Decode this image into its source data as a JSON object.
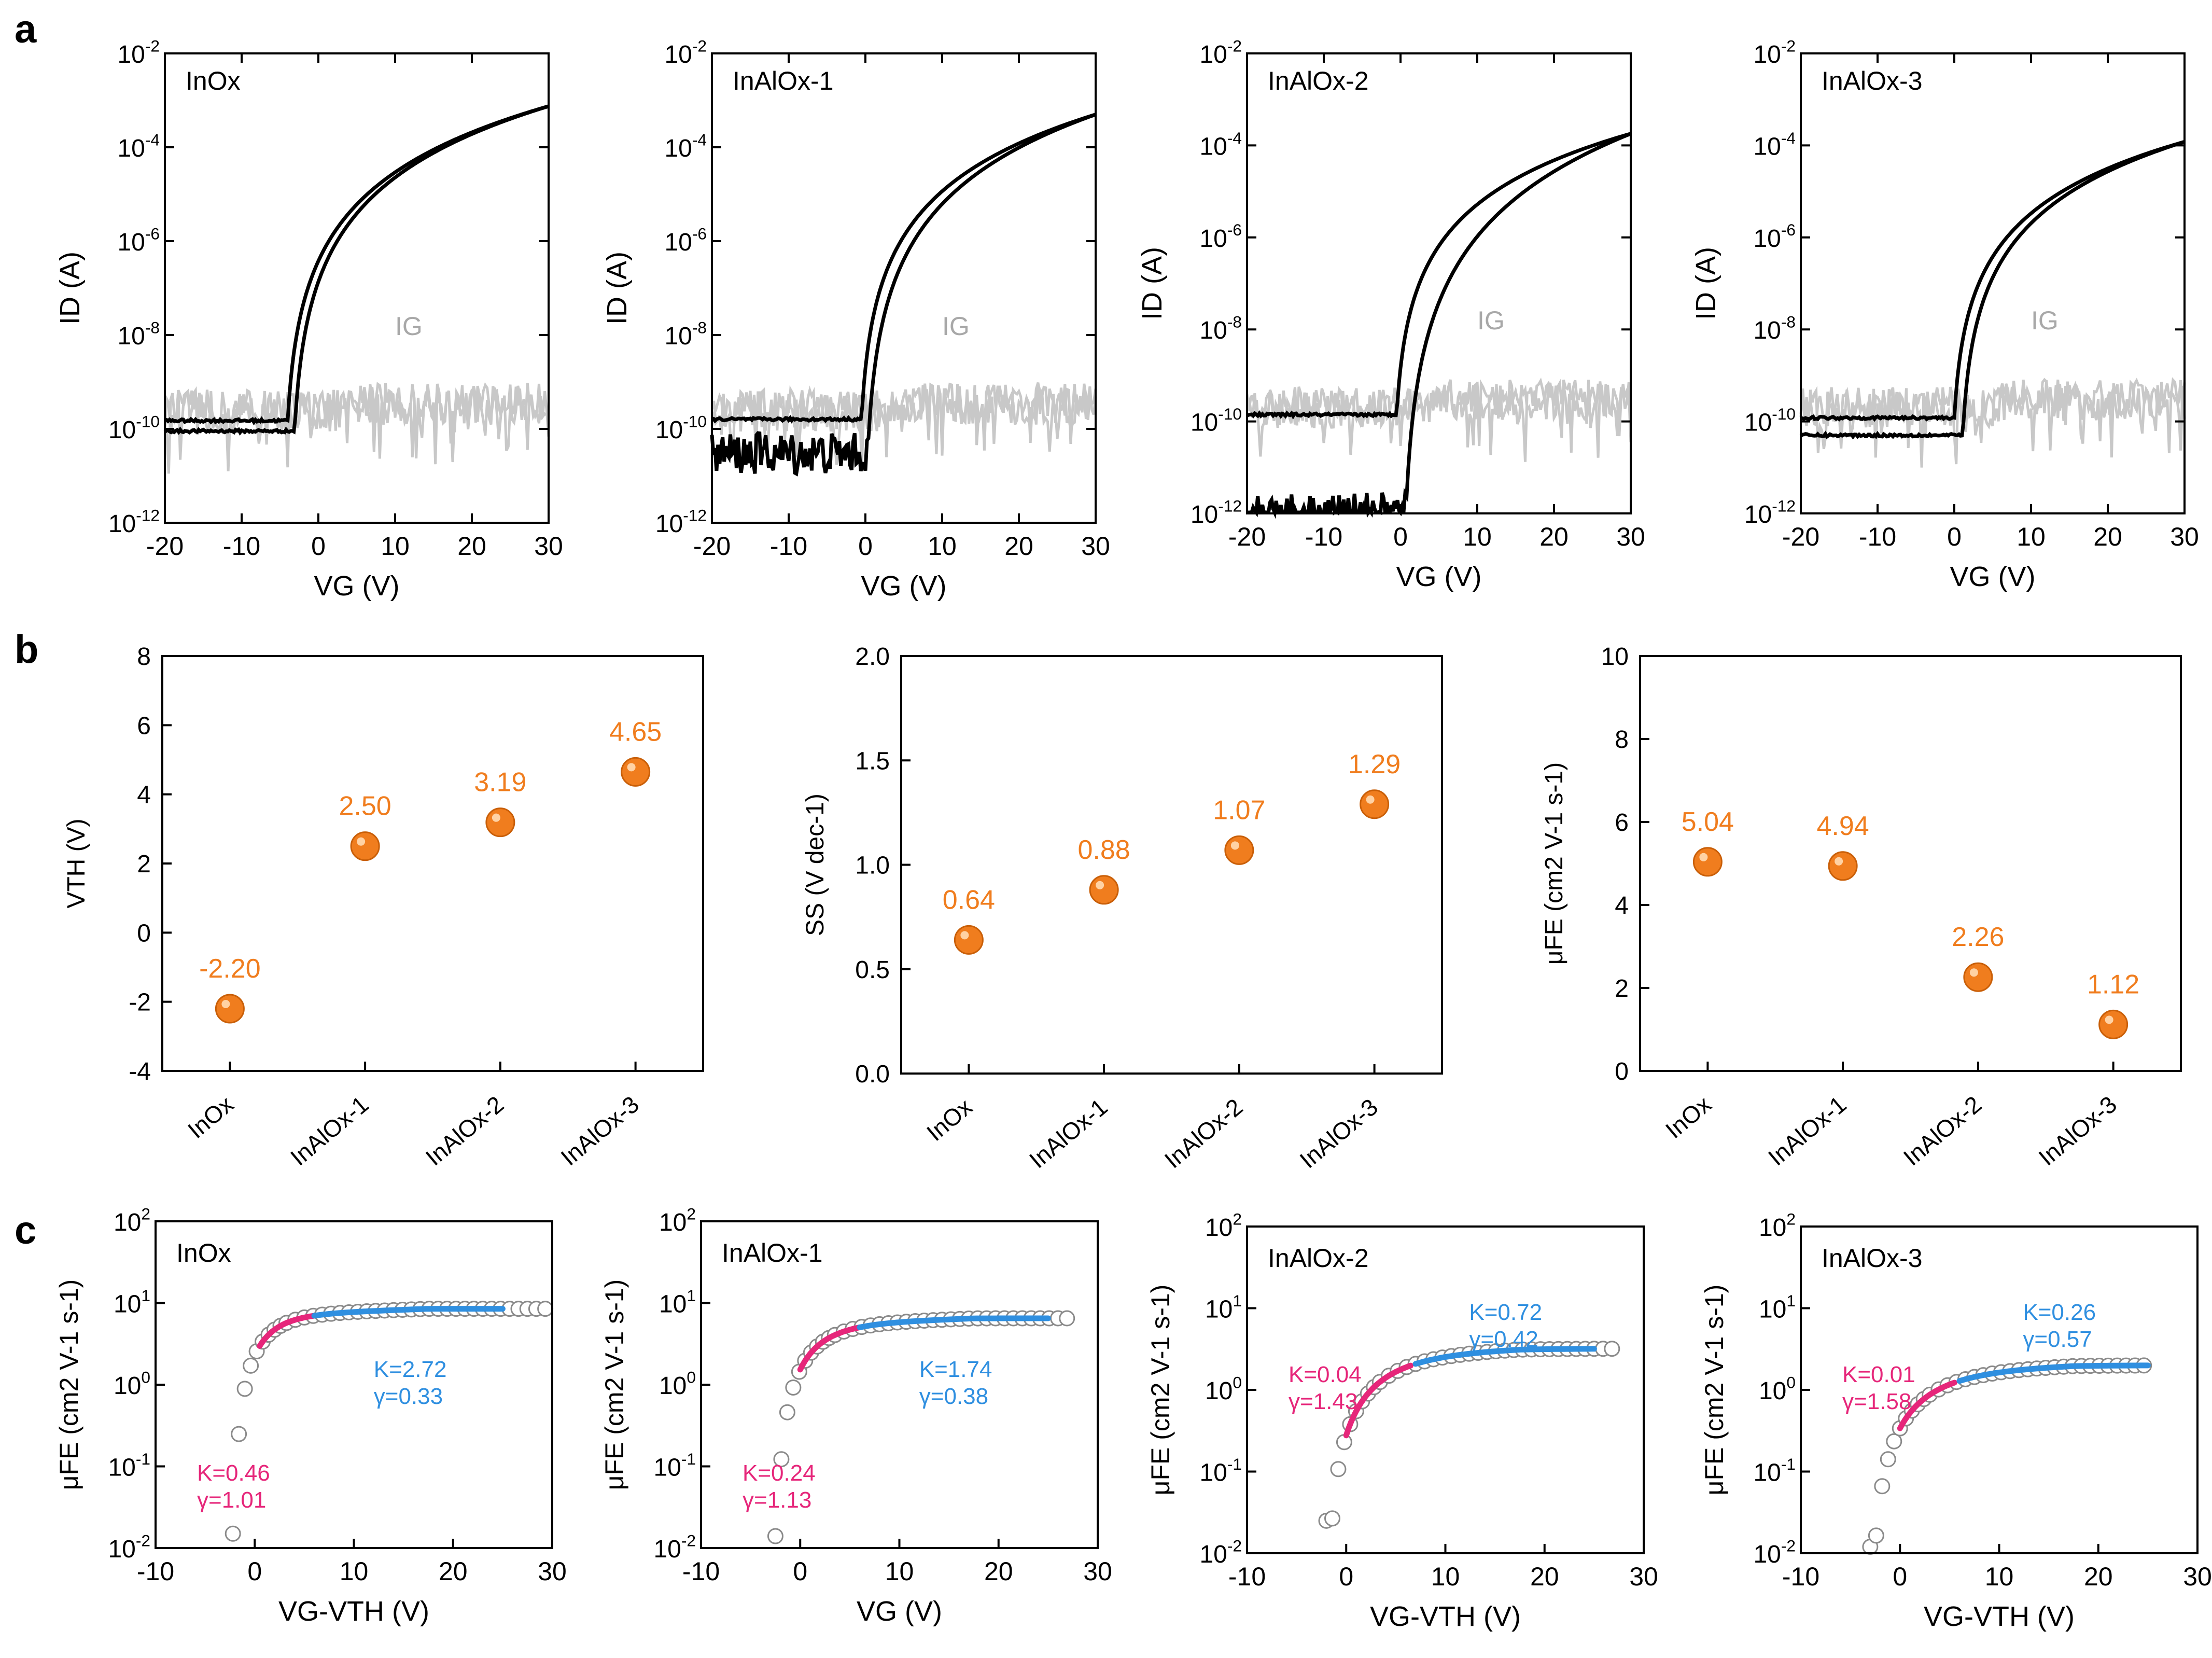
{
  "panel_labels": [
    "a",
    "b",
    "c"
  ],
  "colors": {
    "ink": "#000000",
    "ig": "#c8c8c8",
    "accent": "#f07d1e",
    "pink": "#e6267a",
    "blue": "#2f8fe0",
    "marker": "#8a8a8a"
  },
  "chart_data": [
    {
      "type": "line",
      "panel": "a",
      "title": "InOx",
      "xlabel": "VG (V)",
      "ylabel": "ID (A)",
      "ig_label": "IG",
      "xlim": [
        -20,
        30
      ],
      "xticks": [
        -20,
        -10,
        0,
        10,
        20,
        30
      ],
      "ylim_exp": [
        -12,
        -2
      ],
      "yticks": [
        {
          "b": "10",
          "e": "-12"
        },
        {
          "b": "10",
          "e": "-10"
        },
        {
          "b": "10",
          "e": "-8"
        },
        {
          "b": "10",
          "e": "-6"
        },
        {
          "b": "10",
          "e": "-4"
        },
        {
          "b": "10",
          "e": "-2"
        }
      ],
      "series": [
        {
          "name": "ID",
          "vth": -4,
          "off_fwd": 1.5e-10,
          "off_rev": 9e-11,
          "on_at_30": 0.00075,
          "shift": 0.9
        },
        {
          "name": "IG",
          "level": 3e-10
        }
      ]
    },
    {
      "type": "line",
      "panel": "a",
      "title": "InAlOx-1",
      "xlabel": "VG (V)",
      "ylabel": "ID (A)",
      "ig_label": "IG",
      "xlim": [
        -20,
        30
      ],
      "xticks": [
        -20,
        -10,
        0,
        10,
        20,
        30
      ],
      "ylim_exp": [
        -12,
        -2
      ],
      "yticks": [
        {
          "b": "10",
          "e": "-12"
        },
        {
          "b": "10",
          "e": "-10"
        },
        {
          "b": "10",
          "e": "-8"
        },
        {
          "b": "10",
          "e": "-6"
        },
        {
          "b": "10",
          "e": "-4"
        },
        {
          "b": "10",
          "e": "-2"
        }
      ],
      "series": [
        {
          "name": "ID",
          "vth": -0.5,
          "off_fwd": 1.6e-10,
          "off_rev": 3e-11,
          "on_at_30": 0.0005,
          "shift": 0.8
        },
        {
          "name": "IG",
          "level": 3e-10
        }
      ]
    },
    {
      "type": "line",
      "panel": "a",
      "title": "InAlOx-2",
      "xlabel": "VG (V)",
      "ylabel": "ID (A)",
      "ig_label": "IG",
      "xlim": [
        -20,
        30
      ],
      "xticks": [
        -20,
        -10,
        0,
        10,
        20,
        30
      ],
      "ylim_exp": [
        -12,
        -2
      ],
      "yticks": [
        {
          "b": "10",
          "e": "-12"
        },
        {
          "b": "10",
          "e": "-10"
        },
        {
          "b": "10",
          "e": "-8"
        },
        {
          "b": "10",
          "e": "-6"
        },
        {
          "b": "10",
          "e": "-4"
        },
        {
          "b": "10",
          "e": "-2"
        }
      ],
      "series": [
        {
          "name": "ID",
          "vth": -0.5,
          "off_fwd": 1.4e-10,
          "off_rev": 1e-12,
          "on_at_30": 0.00018,
          "shift": 1.2
        },
        {
          "name": "IG",
          "level": 2.5e-10
        }
      ]
    },
    {
      "type": "line",
      "panel": "a",
      "title": "InAlOx-3",
      "xlabel": "VG (V)",
      "ylabel": "ID (A)",
      "ig_label": "IG",
      "xlim": [
        -20,
        30
      ],
      "xticks": [
        -20,
        -10,
        0,
        10,
        20,
        30
      ],
      "ylim_exp": [
        -12,
        -2
      ],
      "yticks": [
        {
          "b": "10",
          "e": "-12"
        },
        {
          "b": "10",
          "e": "-10"
        },
        {
          "b": "10",
          "e": "-8"
        },
        {
          "b": "10",
          "e": "-6"
        },
        {
          "b": "10",
          "e": "-4"
        },
        {
          "b": "10",
          "e": "-2"
        }
      ],
      "series": [
        {
          "name": "ID",
          "vth": 0,
          "off_fwd": 1.2e-10,
          "off_rev": 5e-11,
          "on_at_30": 0.00012,
          "shift": 1.1
        },
        {
          "name": "IG",
          "level": 2.5e-10
        }
      ]
    },
    {
      "type": "scatter",
      "panel": "b",
      "ylabel": "VTH (V)",
      "ylim": [
        -4,
        8
      ],
      "yticks": [
        -4,
        -2,
        0,
        2,
        4,
        6,
        8
      ],
      "ytick_labels": [
        "-4",
        "-2",
        "0",
        "2",
        "4",
        "6",
        "8"
      ],
      "categories": [
        "InOx",
        "InAlOx-1",
        "InAlOx-2",
        "InAlOx-3"
      ],
      "values": [
        -2.2,
        2.5,
        3.19,
        4.65
      ],
      "value_labels": [
        "-2.20",
        "2.50",
        "3.19",
        "4.65"
      ]
    },
    {
      "type": "scatter",
      "panel": "b",
      "ylabel": "SS (V dec-1)",
      "ylim": [
        0,
        2
      ],
      "yticks": [
        0,
        0.5,
        1,
        1.5,
        2
      ],
      "ytick_labels": [
        "0.0",
        "0.5",
        "1.0",
        "1.5",
        "2.0"
      ],
      "categories": [
        "InOx",
        "InAlOx-1",
        "InAlOx-2",
        "InAlOx-3"
      ],
      "values": [
        0.64,
        0.88,
        1.07,
        1.29
      ],
      "value_labels": [
        "0.64",
        "0.88",
        "1.07",
        "1.29"
      ]
    },
    {
      "type": "scatter",
      "panel": "b",
      "ylabel": "μFE (cm2 V-1 s-1)",
      "ylim": [
        0,
        10
      ],
      "yticks": [
        0,
        2,
        4,
        6,
        8,
        10
      ],
      "ytick_labels": [
        "0",
        "2",
        "4",
        "6",
        "8",
        "10"
      ],
      "categories": [
        "InOx",
        "InAlOx-1",
        "InAlOx-2",
        "InAlOx-3"
      ],
      "values": [
        5.04,
        4.94,
        2.26,
        1.12
      ],
      "value_labels": [
        "5.04",
        "4.94",
        "2.26",
        "1.12"
      ]
    },
    {
      "type": "scatter",
      "panel": "c",
      "title": "InOx",
      "xlabel": "VG-VTH (V)",
      "ylabel": "μFE (cm2 V-1 s-1)",
      "xlim": [
        -10,
        30
      ],
      "xticks": [
        -10,
        0,
        10,
        20,
        30
      ],
      "ylim_exp": [
        -2,
        2
      ],
      "yticks": [
        {
          "b": "10",
          "e": "-2"
        },
        {
          "b": "10",
          "e": "-1"
        },
        {
          "b": "10",
          "e": "0"
        },
        {
          "b": "10",
          "e": "1"
        },
        {
          "b": "10",
          "e": "2"
        }
      ],
      "fit_pink": {
        "K": "K=0.46",
        "gamma": "γ=1.01",
        "x_range": [
          0.5,
          6
        ]
      },
      "fit_blue": {
        "K": "K=2.72",
        "gamma": "γ=0.33",
        "x_range": [
          6,
          25
        ]
      },
      "series": [
        {
          "name": "μFE",
          "x_start": -2.2,
          "x_end": 30,
          "y_low": 0.015,
          "y_sat": 8.5,
          "knee": 2.4
        }
      ]
    },
    {
      "type": "scatter",
      "panel": "c",
      "title": "InAlOx-1",
      "xlabel": "VG (V)",
      "ylabel": "μFE (cm2 V-1 s-1)",
      "xlim": [
        -10,
        30
      ],
      "xticks": [
        -10,
        0,
        10,
        20,
        30
      ],
      "ylim_exp": [
        -2,
        2
      ],
      "yticks": [
        {
          "b": "10",
          "e": "-2"
        },
        {
          "b": "10",
          "e": "-1"
        },
        {
          "b": "10",
          "e": "0"
        },
        {
          "b": "10",
          "e": "1"
        },
        {
          "b": "10",
          "e": "2"
        }
      ],
      "fit_pink": {
        "K": "K=0.24",
        "gamma": "γ=1.13",
        "x_range": [
          0,
          6
        ]
      },
      "fit_blue": {
        "K": "K=1.74",
        "gamma": "γ=0.38",
        "x_range": [
          6,
          25
        ]
      },
      "series": [
        {
          "name": "μFE",
          "x_start": -2.5,
          "x_end": 27,
          "y_low": 0.014,
          "y_sat": 6.5,
          "knee": 3.0
        }
      ]
    },
    {
      "type": "scatter",
      "panel": "c",
      "title": "InAlOx-2",
      "xlabel": "VG-VTH (V)",
      "ylabel": "μFE (cm2 V-1 s-1)",
      "xlim": [
        -10,
        30
      ],
      "xticks": [
        -10,
        0,
        10,
        20,
        30
      ],
      "ylim_exp": [
        -2,
        2
      ],
      "yticks": [
        {
          "b": "10",
          "e": "-2"
        },
        {
          "b": "10",
          "e": "-1"
        },
        {
          "b": "10",
          "e": "0"
        },
        {
          "b": "10",
          "e": "1"
        },
        {
          "b": "10",
          "e": "2"
        }
      ],
      "fit_pink": {
        "K": "K=0.04",
        "gamma": "γ=1.43",
        "x_range": [
          0,
          6.5
        ]
      },
      "fit_blue": {
        "K": "K=0.72",
        "gamma": "γ=0.42",
        "x_range": [
          7,
          25
        ]
      },
      "series": [
        {
          "name": "μFE",
          "x_start": -2,
          "x_end": 27,
          "y_low": 0.025,
          "y_sat": 3.2,
          "knee": 4.5
        }
      ]
    },
    {
      "type": "scatter",
      "panel": "c",
      "title": "InAlOx-3",
      "xlabel": "VG-VTH (V)",
      "ylabel": "μFE (cm2 V-1 s-1)",
      "xlim": [
        -10,
        30
      ],
      "xticks": [
        -10,
        0,
        10,
        20,
        30
      ],
      "ylim_exp": [
        -2,
        2
      ],
      "yticks": [
        {
          "b": "10",
          "e": "-2"
        },
        {
          "b": "10",
          "e": "-1"
        },
        {
          "b": "10",
          "e": "0"
        },
        {
          "b": "10",
          "e": "1"
        },
        {
          "b": "10",
          "e": "2"
        }
      ],
      "fit_pink": {
        "K": "K=0.01",
        "gamma": "γ=1.58",
        "x_range": [
          0,
          5.5
        ]
      },
      "fit_blue": {
        "K": "K=0.26",
        "gamma": "γ=0.57",
        "x_range": [
          6,
          25
        ]
      },
      "series": [
        {
          "name": "μFE",
          "x_start": -3,
          "x_end": 25,
          "y_low": 0.012,
          "y_sat": 2.0,
          "knee": 4.5
        }
      ]
    }
  ]
}
